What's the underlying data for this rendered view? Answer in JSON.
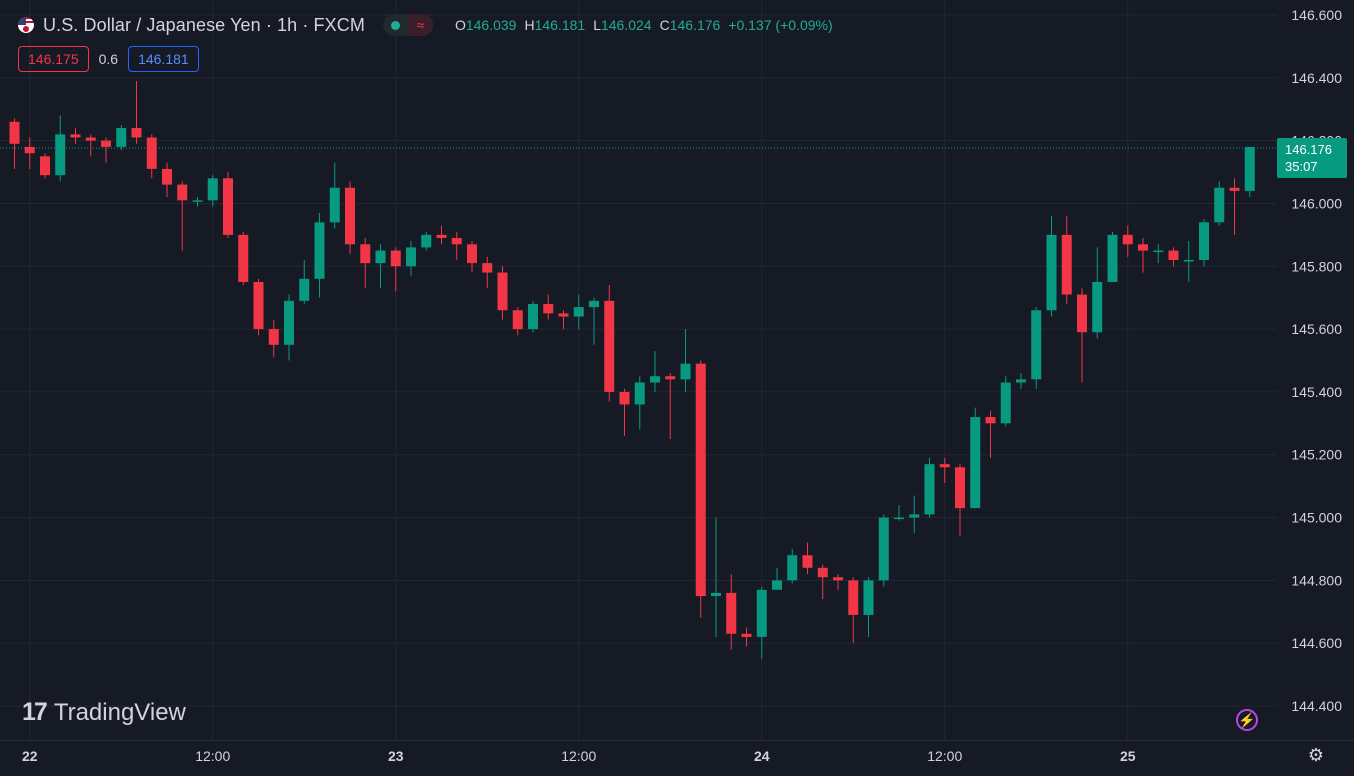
{
  "header": {
    "symbol_title": "U.S. Dollar / Japanese Yen · 1h · FXCM",
    "flag_icon": "us-flag-icon",
    "ohlc": {
      "o_label": "O",
      "o_value": "146.039",
      "h_label": "H",
      "h_value": "146.181",
      "l_label": "L",
      "l_value": "146.024",
      "c_label": "C",
      "c_value": "146.176",
      "change": "+0.137 (+0.09%)"
    }
  },
  "trade": {
    "bid": "146.175",
    "spread": "0.6",
    "ask": "146.181"
  },
  "last_price": {
    "price": "146.176",
    "countdown": "35:07"
  },
  "brand": {
    "name": "TradingView",
    "mark": "17"
  },
  "colors": {
    "up": "#089981",
    "down": "#f23645",
    "background": "#161a25",
    "grid": "#232734",
    "text": "#d1d4dc"
  },
  "chart_data": {
    "type": "candlestick",
    "ylim": [
      144.3,
      146.65
    ],
    "y_ticks": [
      "146.600",
      "146.400",
      "146.200",
      "146.000",
      "145.800",
      "145.600",
      "145.400",
      "145.200",
      "145.000",
      "144.800",
      "144.600",
      "144.400"
    ],
    "x_ticks": [
      {
        "label": "22",
        "bar": 1
      },
      {
        "label": "12:00",
        "bar": 13
      },
      {
        "label": "23",
        "bar": 25
      },
      {
        "label": "12:00",
        "bar": 37
      },
      {
        "label": "24",
        "bar": 49
      },
      {
        "label": "12:00",
        "bar": 61
      },
      {
        "label": "25",
        "bar": 73
      }
    ],
    "last_price": 146.176,
    "candles": [
      [
        146.26,
        146.19,
        146.27,
        146.11
      ],
      [
        146.18,
        146.16,
        146.21,
        146.11
      ],
      [
        146.15,
        146.09,
        146.16,
        146.08
      ],
      [
        146.09,
        146.22,
        146.28,
        146.07
      ],
      [
        146.22,
        146.21,
        146.24,
        146.19
      ],
      [
        146.21,
        146.2,
        146.22,
        146.15
      ],
      [
        146.2,
        146.18,
        146.21,
        146.13
      ],
      [
        146.18,
        146.24,
        146.25,
        146.17
      ],
      [
        146.24,
        146.21,
        146.39,
        146.19
      ],
      [
        146.21,
        146.11,
        146.22,
        146.08
      ],
      [
        146.11,
        146.06,
        146.13,
        146.02
      ],
      [
        146.06,
        146.01,
        146.07,
        145.85
      ],
      [
        146.01,
        146.01,
        146.02,
        145.99
      ],
      [
        146.01,
        146.08,
        146.09,
        145.99
      ],
      [
        146.08,
        145.9,
        146.1,
        145.89
      ],
      [
        145.9,
        145.75,
        145.91,
        145.74
      ],
      [
        145.75,
        145.6,
        145.76,
        145.58
      ],
      [
        145.6,
        145.55,
        145.63,
        145.51
      ],
      [
        145.55,
        145.69,
        145.71,
        145.5
      ],
      [
        145.69,
        145.76,
        145.82,
        145.68
      ],
      [
        145.76,
        145.94,
        145.97,
        145.7
      ],
      [
        145.94,
        146.05,
        146.13,
        145.92
      ],
      [
        146.05,
        145.87,
        146.07,
        145.84
      ],
      [
        145.87,
        145.81,
        145.89,
        145.73
      ],
      [
        145.81,
        145.85,
        145.87,
        145.73
      ],
      [
        145.85,
        145.8,
        145.86,
        145.72
      ],
      [
        145.8,
        145.86,
        145.88,
        145.77
      ],
      [
        145.86,
        145.9,
        145.91,
        145.85
      ],
      [
        145.9,
        145.89,
        145.93,
        145.87
      ],
      [
        145.89,
        145.87,
        145.91,
        145.82
      ],
      [
        145.87,
        145.81,
        145.88,
        145.78
      ],
      [
        145.81,
        145.78,
        145.83,
        145.73
      ],
      [
        145.78,
        145.66,
        145.8,
        145.63
      ],
      [
        145.66,
        145.6,
        145.67,
        145.58
      ],
      [
        145.6,
        145.68,
        145.69,
        145.59
      ],
      [
        145.68,
        145.65,
        145.71,
        145.63
      ],
      [
        145.65,
        145.64,
        145.66,
        145.6
      ],
      [
        145.64,
        145.67,
        145.71,
        145.6
      ],
      [
        145.67,
        145.69,
        145.7,
        145.55
      ],
      [
        145.69,
        145.4,
        145.74,
        145.37
      ],
      [
        145.4,
        145.36,
        145.41,
        145.26
      ],
      [
        145.36,
        145.43,
        145.45,
        145.28
      ],
      [
        145.43,
        145.45,
        145.53,
        145.4
      ],
      [
        145.45,
        145.44,
        145.46,
        145.25
      ],
      [
        145.44,
        145.49,
        145.6,
        145.4
      ],
      [
        145.49,
        144.75,
        145.5,
        144.68
      ],
      [
        144.75,
        144.76,
        145.0,
        144.62
      ],
      [
        144.76,
        144.63,
        144.82,
        144.58
      ],
      [
        144.63,
        144.62,
        144.65,
        144.59
      ],
      [
        144.62,
        144.77,
        144.78,
        144.55
      ],
      [
        144.77,
        144.8,
        144.84,
        144.79
      ],
      [
        144.8,
        144.88,
        144.9,
        144.79
      ],
      [
        144.88,
        144.84,
        144.92,
        144.82
      ],
      [
        144.84,
        144.81,
        144.85,
        144.74
      ],
      [
        144.81,
        144.8,
        144.82,
        144.77
      ],
      [
        144.8,
        144.69,
        144.81,
        144.6
      ],
      [
        144.69,
        144.8,
        144.81,
        144.62
      ],
      [
        144.8,
        145.0,
        145.01,
        144.78
      ],
      [
        145.0,
        145.0,
        145.04,
        144.99
      ],
      [
        145.0,
        145.01,
        145.07,
        144.95
      ],
      [
        145.01,
        145.17,
        145.19,
        145.0
      ],
      [
        145.17,
        145.16,
        145.19,
        145.11
      ],
      [
        145.16,
        145.03,
        145.17,
        144.94
      ],
      [
        145.03,
        145.32,
        145.35,
        145.03
      ],
      [
        145.32,
        145.3,
        145.34,
        145.19
      ],
      [
        145.3,
        145.43,
        145.45,
        145.29
      ],
      [
        145.43,
        145.44,
        145.46,
        145.41
      ],
      [
        145.44,
        145.66,
        145.67,
        145.41
      ],
      [
        145.66,
        145.9,
        145.96,
        145.64
      ],
      [
        145.9,
        145.71,
        145.96,
        145.68
      ],
      [
        145.71,
        145.59,
        145.73,
        145.43
      ],
      [
        145.59,
        145.75,
        145.86,
        145.57
      ],
      [
        145.75,
        145.9,
        145.91,
        145.76
      ],
      [
        145.9,
        145.87,
        145.93,
        145.83
      ],
      [
        145.87,
        145.85,
        145.89,
        145.78
      ],
      [
        145.85,
        145.85,
        145.87,
        145.81
      ],
      [
        145.85,
        145.82,
        145.86,
        145.8
      ],
      [
        145.82,
        145.82,
        145.88,
        145.75
      ],
      [
        145.82,
        145.94,
        145.95,
        145.8
      ],
      [
        145.94,
        146.05,
        146.07,
        145.93
      ],
      [
        146.05,
        146.04,
        146.08,
        145.9
      ],
      [
        146.04,
        146.18,
        146.18,
        146.02
      ]
    ]
  }
}
